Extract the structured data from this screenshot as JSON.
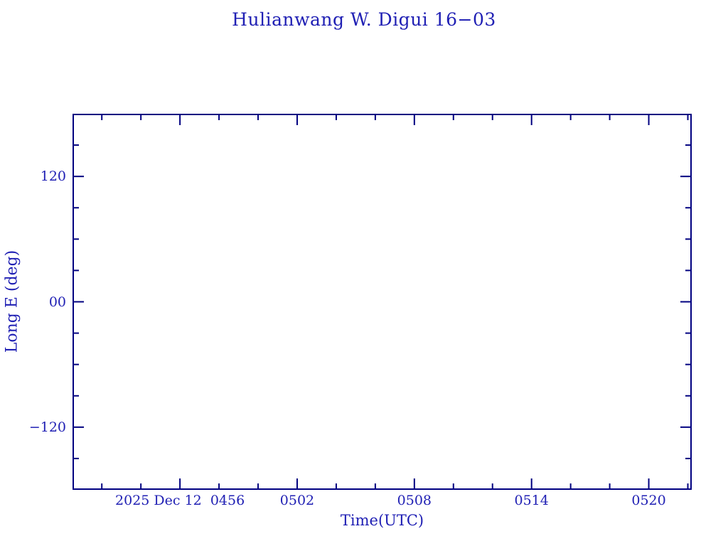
{
  "title": "Hulianwang W. Digui 16−03",
  "axes": {
    "x": {
      "label": "Time(UTC)"
    },
    "y": {
      "label": "Long E (deg)"
    }
  },
  "colors": {
    "axis_line": "#000080",
    "text": "#2020b4",
    "background": "#ffffff"
  },
  "chart_data": {
    "type": "line",
    "title": "Hulianwang W. Digui 16−03",
    "xlabel": "Time(UTC)",
    "ylabel": "Long E (deg)",
    "series": [],
    "note": "Plot frame is empty — no data points or curves are drawn.",
    "x_axis": {
      "values_are": "UTC minutes after midnight, 2025 Dec 12",
      "xlim": [
        290.5,
        322.2
      ],
      "major_ticks": [
        296,
        302,
        308,
        314,
        320
      ],
      "major_tick_labels": [
        "2025 Dec 12  0456",
        "0502",
        "0508",
        "0514",
        "0520"
      ],
      "minor_ticks": [
        292,
        294,
        298,
        300,
        304,
        306,
        310,
        312,
        316,
        318,
        322
      ],
      "minor_tick_step_minutes": 2
    },
    "y_axis": {
      "values_are": "degrees of east longitude",
      "ylim": [
        -180,
        180
      ],
      "major_ticks": [
        120,
        0,
        -120
      ],
      "major_tick_labels": [
        "120",
        "00",
        "−120"
      ],
      "minor_ticks": [
        150,
        90,
        60,
        30,
        -30,
        -60,
        -90,
        -150
      ],
      "minor_tick_step_deg": 30
    },
    "grid": false,
    "legend": false,
    "tick_style": "inward ticks mirrored on all four sides"
  }
}
